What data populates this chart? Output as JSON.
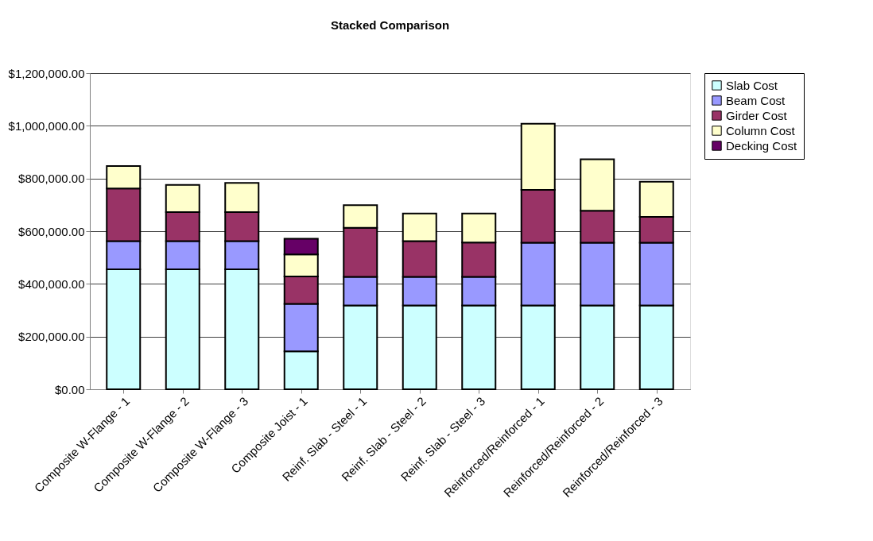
{
  "chart_data": {
    "type": "bar",
    "title": "Stacked Comparison",
    "stacked": true,
    "legend": "right",
    "grid": "y",
    "categories": [
      "Composite W-Flange - 1",
      "Composite W-Flange - 2",
      "Composite W-Flange - 3",
      "Composite Joist - 1",
      "Reinf. Slab - Steel - 1",
      "Reinf. Slab - Steel - 2",
      "Reinf. Slab - Steel - 3",
      "Reinforced/Reinforced - 1",
      "Reinforced/Reinforced - 2",
      "Reinforced/Reinforced - 3"
    ],
    "ylim": [
      0,
      1200000
    ],
    "yticks": [
      {
        "value": 0,
        "label": "$0.00"
      },
      {
        "value": 200000,
        "label": "$200,000.00"
      },
      {
        "value": 400000,
        "label": "$400,000.00"
      },
      {
        "value": 600000,
        "label": "$600,000.00"
      },
      {
        "value": 800000,
        "label": "$800,000.00"
      },
      {
        "value": 1000000,
        "label": "$1,000,000.00"
      },
      {
        "value": 1200000,
        "label": "$1,200,000.00"
      }
    ],
    "series": [
      {
        "name": "Slab Cost",
        "color": "#ccffff",
        "values": [
          455000,
          455000,
          455000,
          144000,
          318000,
          318000,
          318000,
          318000,
          318000,
          318000
        ]
      },
      {
        "name": "Beam Cost",
        "color": "#9999ff",
        "values": [
          107000,
          107000,
          107000,
          180000,
          109000,
          109000,
          109000,
          238000,
          238000,
          238000
        ]
      },
      {
        "name": "Girder Cost",
        "color": "#993366",
        "values": [
          200000,
          110000,
          110000,
          104000,
          186000,
          135000,
          130000,
          201000,
          122000,
          98000
        ]
      },
      {
        "name": "Column Cost",
        "color": "#ffffcc",
        "values": [
          85000,
          104000,
          111000,
          84000,
          86000,
          105000,
          110000,
          251000,
          195000,
          134000
        ]
      },
      {
        "name": "Decking Cost",
        "color": "#660066",
        "values": [
          null,
          null,
          null,
          59000,
          null,
          null,
          null,
          null,
          null,
          null
        ]
      }
    ]
  }
}
